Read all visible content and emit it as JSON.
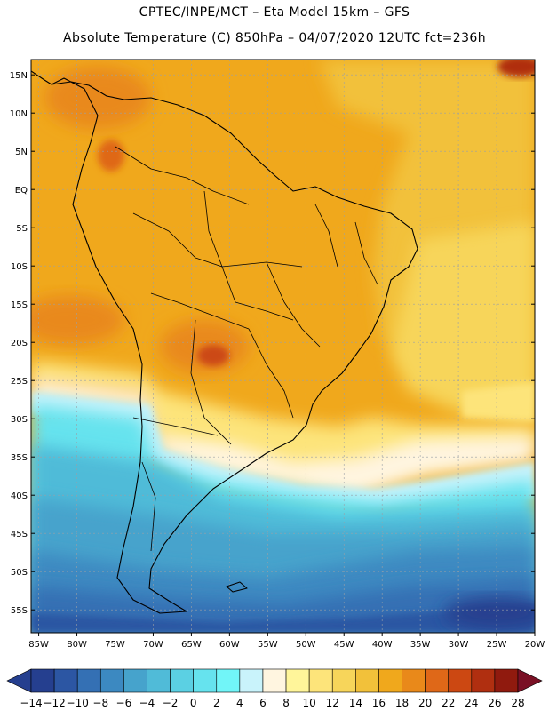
{
  "header": {
    "line1": "CPTEC/INPE/MCT –  Eta Model 15km – GFS",
    "line2": "Absolute Temperature (C) 850hPa – 04/07/2020 12UTC fct=236h"
  },
  "map": {
    "lon_range": [
      -86,
      -20
    ],
    "lat_range": [
      -58,
      17
    ],
    "lon_ticks": [
      "85W",
      "80W",
      "75W",
      "70W",
      "65W",
      "60W",
      "55W",
      "50W",
      "45W",
      "40W",
      "35W",
      "30W",
      "25W",
      "20W"
    ],
    "lat_ticks": [
      "15N",
      "10N",
      "5N",
      "EQ",
      "5S",
      "10S",
      "15S",
      "20S",
      "25S",
      "30S",
      "35S",
      "40S",
      "45S",
      "50S",
      "55S"
    ]
  },
  "colorbar": {
    "labels": [
      "-14",
      "-12",
      "-10",
      "-8",
      "-6",
      "-4",
      "-2",
      "0",
      "2",
      "4",
      "6",
      "8",
      "10",
      "12",
      "14",
      "16",
      "18",
      "20",
      "22",
      "24",
      "26",
      "28"
    ],
    "colors": {
      "under": "#253f8f",
      "over": "#7a1025",
      "bins": [
        "#253f8f",
        "#2c56a3",
        "#3470b4",
        "#3c89c1",
        "#46a3cc",
        "#50bbd8",
        "#5bd0e3",
        "#66e3ee",
        "#71f5f8",
        "#c9f3fb",
        "#fff5e0",
        "#fff59a",
        "#fde47a",
        "#f7d55a",
        "#f2c13a",
        "#f0a81c",
        "#e9891a",
        "#df6818",
        "#cc4812",
        "#b02f10",
        "#901a0e"
      ]
    }
  }
}
